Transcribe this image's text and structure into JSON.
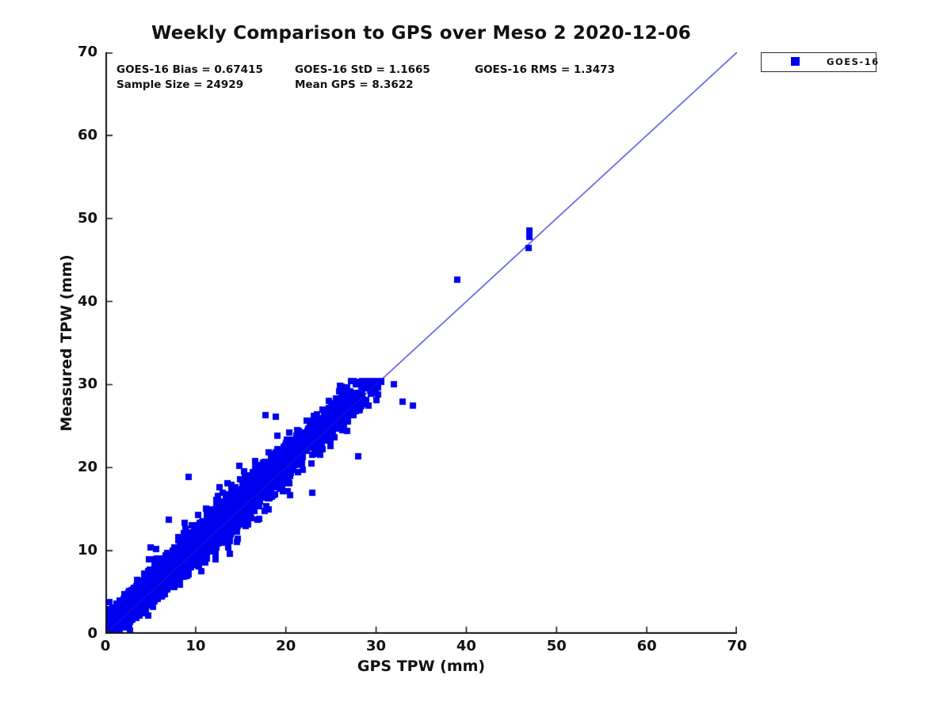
{
  "title": "Weekly Comparison to GPS over Meso 2 2020-12-06",
  "stats": {
    "bias_label": "GOES-16 Bias = 0.67415",
    "std_label": "GOES-16 StD = 1.1665",
    "rms_label": "GOES-16 RMS = 1.3473",
    "sample_label": "Sample Size = 24929",
    "mean_gps_label": "Mean GPS = 8.3622"
  },
  "legend": {
    "series_label": "GOES-16",
    "marker_color": "#0000f0"
  },
  "axes": {
    "x_label": "GPS TPW (mm)",
    "y_label": "Measured TPW (mm)",
    "x_ticks": [
      0,
      10,
      20,
      30,
      40,
      50,
      60,
      70
    ],
    "y_ticks": [
      0,
      10,
      20,
      30,
      40,
      50,
      60,
      70
    ],
    "x_range": [
      0,
      70
    ],
    "y_range": [
      0,
      70
    ]
  },
  "chart_data": {
    "type": "scatter",
    "title": "Weekly Comparison to GPS over Meso 2 2020-12-06",
    "xlabel": "GPS TPW (mm)",
    "ylabel": "Measured TPW (mm)",
    "xlim": [
      0,
      70
    ],
    "ylim": [
      0,
      70
    ],
    "grid": false,
    "legend_position": "northeast-outside",
    "reference_line": {
      "from": [
        0,
        0
      ],
      "to": [
        70,
        70
      ],
      "color": "#1818cf",
      "width": 1.2
    },
    "series": [
      {
        "name": "GOES-16",
        "marker": "square",
        "color": "#0000f0",
        "marker_size_px": 8,
        "sample_size": 24929,
        "bias": 0.67415,
        "std": 1.1665,
        "rms": 1.3473,
        "mean_gps": 8.3622,
        "cluster_model": {
          "seed": 20201206,
          "render_points": 8000,
          "x_mean": 8.0,
          "x_min": 0.15,
          "x_max": 30.6,
          "slope": 1.0,
          "intercept": 0.674,
          "noise_std_base": 0.55,
          "noise_std_per_x": 0.045,
          "noise_std_max": 1.25,
          "wide_noise_fraction": 0.02,
          "wide_noise_scale": 2.4,
          "y_min": 0.35,
          "y_cap": 30.4
        },
        "outlier_points": [
          [
            39.0,
            42.6
          ],
          [
            47.0,
            48.5
          ],
          [
            47.0,
            47.8
          ],
          [
            46.9,
            46.4
          ],
          [
            32.0,
            30.0
          ],
          [
            32.9,
            27.9
          ],
          [
            34.1,
            27.5
          ],
          [
            28.0,
            21.4
          ],
          [
            22.9,
            17.0
          ],
          [
            17.7,
            26.3
          ],
          [
            9.2,
            18.9
          ]
        ]
      }
    ]
  }
}
